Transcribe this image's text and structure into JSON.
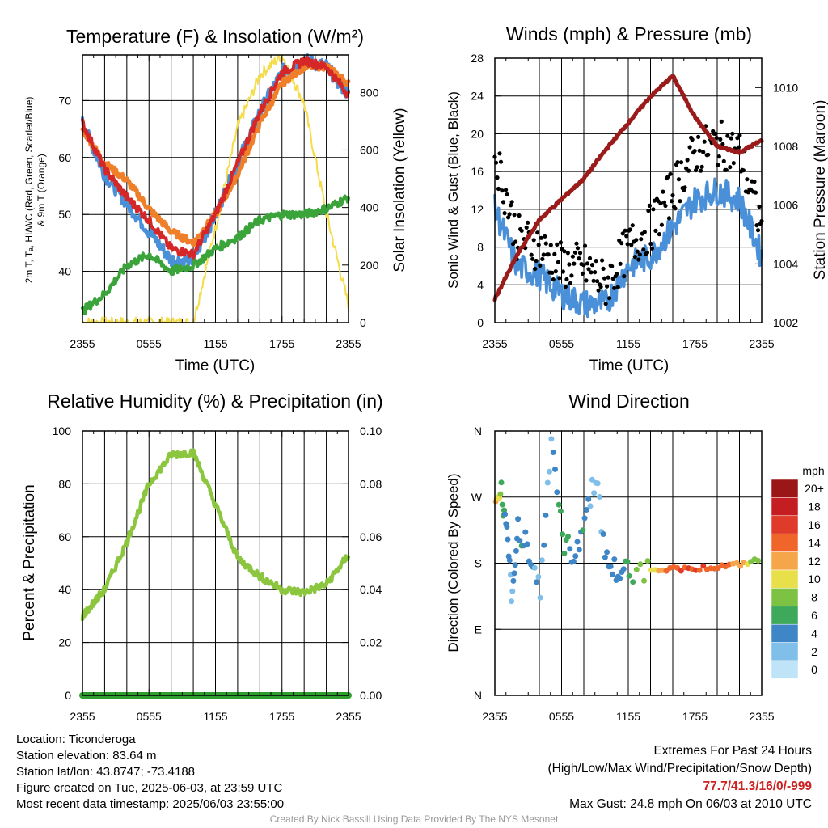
{
  "colors": {
    "temp": "#d62728",
    "dewpoint": "#3aa33a",
    "hiwc": "#4a90d9",
    "temp9m": "#f07f2a",
    "insolation": "#f5dc4a",
    "wind": "#4a90d9",
    "gust": "#000000",
    "pressure": "#9b1b1b",
    "rh": "#8cc63f",
    "precip": "#2e9e2e"
  },
  "panels": {
    "temp": {
      "title": "Temperature (F) & Insolation (W/m²)",
      "ylabel_line1": "2m T, Tₐ, HI/WC (Red, Green, Scarlet/Blue)",
      "ylabel_line2": "& 9m T (Orange)",
      "ylabel_right": "Solar Insolation (Yellow)",
      "xlabel": "Time (UTC)",
      "yticks": [
        "40",
        "50",
        "60",
        "70"
      ],
      "yticks_right": [
        "0",
        "200",
        "400",
        "600",
        "800"
      ]
    },
    "wind": {
      "title": "Winds (mph) & Pressure (mb)",
      "ylabel": "Sonic Wind & Gust (Blue, Black)",
      "ylabel_right": "Station Pressure (Maroon)",
      "xlabel": "Time (UTC)",
      "yticks": [
        "0",
        "4",
        "8",
        "12",
        "16",
        "20",
        "24",
        "28"
      ],
      "yticks_right": [
        "1002",
        "1004",
        "1006",
        "1008",
        "1010"
      ]
    },
    "rh": {
      "title": "Relative Humidity (%) & Precipitation (in)",
      "ylabel": "Percent & Precipitation",
      "yticks": [
        "0",
        "20",
        "40",
        "60",
        "80",
        "100"
      ],
      "yticks_right": [
        "0.00",
        "0.02",
        "0.04",
        "0.06",
        "0.08",
        "0.10"
      ]
    },
    "dir": {
      "title": "Wind Direction",
      "ylabel": "Direction (Colored By Speed)",
      "yticks": [
        "N",
        "E",
        "S",
        "W",
        "N"
      ],
      "colorbar_title": "mph",
      "colorbar_labels": [
        "0",
        "2",
        "4",
        "6",
        "8",
        "10",
        "12",
        "14",
        "16",
        "18",
        "20+"
      ],
      "colorbar_colors": [
        "#bfe3f7",
        "#7fbfea",
        "#3f86c6",
        "#3ea85b",
        "#7dc242",
        "#e8e04a",
        "#f5a64a",
        "#f0662a",
        "#e03a2a",
        "#c41e22",
        "#9b1616"
      ]
    }
  },
  "xticks": [
    "2355",
    "0555",
    "1155",
    "1755",
    "2355"
  ],
  "chart_data": [
    {
      "type": "line",
      "title": "Temperature (F) & Insolation (W/m²)",
      "xlabel": "Time (UTC)",
      "ylabel": "2m T, Tₐ, HI/WC (Red, Green, Scarlet/Blue) & 9m T (Orange)",
      "ylabel_right": "Solar Insolation (Yellow)",
      "x": [
        "2355",
        "0155",
        "0355",
        "0555",
        "0755",
        "0955",
        "1155",
        "1355",
        "1555",
        "1755",
        "1955",
        "2155",
        "2355"
      ],
      "ylim": [
        31,
        78
      ],
      "ylim_right": [
        0,
        930
      ],
      "series": [
        {
          "name": "2m T",
          "color": "#d62728",
          "values": [
            66,
            58,
            53,
            49,
            44,
            43,
            50,
            59,
            68,
            75,
            77,
            76,
            71
          ]
        },
        {
          "name": "9m T",
          "color": "#f07f2a",
          "values": [
            65,
            59,
            56,
            51,
            47,
            45,
            50,
            57,
            66,
            73,
            76,
            76,
            73
          ]
        },
        {
          "name": "Td",
          "color": "#3aa33a",
          "values": [
            33,
            36,
            41,
            43,
            40,
            41,
            44,
            46,
            49,
            50,
            50,
            51,
            53
          ]
        },
        {
          "name": "HI/WC",
          "color": "#4a90d9",
          "values": [
            66,
            57,
            52,
            47,
            42,
            42,
            50,
            59,
            68,
            75,
            77,
            76,
            71
          ]
        },
        {
          "name": "Solar Insolation",
          "axis": "right",
          "color": "#f5dc4a",
          "values": [
            0,
            0,
            0,
            0,
            0,
            0,
            330,
            680,
            860,
            930,
            760,
            380,
            60
          ]
        }
      ]
    },
    {
      "type": "line",
      "title": "Winds (mph) & Pressure (mb)",
      "xlabel": "Time (UTC)",
      "ylabel": "Sonic Wind & Gust (Blue, Black)",
      "ylabel_right": "Station Pressure (Maroon)",
      "x": [
        "2355",
        "0155",
        "0355",
        "0555",
        "0755",
        "0955",
        "1155",
        "1355",
        "1555",
        "1755",
        "1955",
        "2155",
        "2355"
      ],
      "ylim": [
        0,
        28
      ],
      "ylim_right": [
        1002,
        1011
      ],
      "series": [
        {
          "name": "Sonic Wind",
          "color": "#4a90d9",
          "values": [
            12,
            6,
            5,
            3,
            2,
            2,
            6,
            7,
            10,
            13,
            14,
            13,
            7
          ]
        },
        {
          "name": "Gust",
          "type": "scatter",
          "color": "#000000",
          "values": [
            18,
            9,
            8,
            6,
            6,
            4,
            8,
            10,
            14,
            18,
            19,
            18,
            10
          ]
        },
        {
          "name": "Station Pressure",
          "axis": "right",
          "color": "#9b1b1b",
          "values": [
            1002.8,
            1004.3,
            1005.5,
            1006.2,
            1006.9,
            1007.9,
            1008.8,
            1009.7,
            1010.4,
            1009.0,
            1008.0,
            1007.8,
            1008.2
          ]
        }
      ]
    },
    {
      "type": "line",
      "title": "Relative Humidity (%) & Precipitation (in)",
      "ylabel": "Percent & Precipitation",
      "x": [
        "2355",
        "0155",
        "0355",
        "0555",
        "0755",
        "0955",
        "1155",
        "1355",
        "1555",
        "1755",
        "1955",
        "2155",
        "2355"
      ],
      "ylim": [
        0,
        100
      ],
      "ylim_right": [
        0,
        0.1
      ],
      "series": [
        {
          "name": "Relative Humidity",
          "color": "#8cc63f",
          "values": [
            30,
            40,
            58,
            80,
            91,
            92,
            72,
            52,
            45,
            40,
            39,
            42,
            53
          ]
        },
        {
          "name": "Precipitation",
          "axis": "right",
          "color": "#2e9e2e",
          "values": [
            0,
            0,
            0,
            0,
            0,
            0,
            0,
            0,
            0,
            0,
            0,
            0,
            0
          ]
        }
      ]
    },
    {
      "type": "scatter",
      "title": "Wind Direction",
      "ylabel": "Direction (Colored By Speed)",
      "ytick_labels": [
        "N",
        "E",
        "S",
        "W",
        "N"
      ],
      "colorbar_label": "mph",
      "points": [
        {
          "x": "0000",
          "dir": 265,
          "speed": 12
        },
        {
          "x": "0030",
          "dir": 275,
          "speed": 7
        },
        {
          "x": "0100",
          "dir": 215,
          "speed": 4
        },
        {
          "x": "0130",
          "dir": 125,
          "speed": 2
        },
        {
          "x": "0200",
          "dir": 230,
          "speed": 5
        },
        {
          "x": "0300",
          "dir": 200,
          "speed": 4
        },
        {
          "x": "0400",
          "dir": 140,
          "speed": 3
        },
        {
          "x": "0500",
          "dir": 355,
          "speed": 2
        },
        {
          "x": "0600",
          "dir": 210,
          "speed": 7
        },
        {
          "x": "0700",
          "dir": 190,
          "speed": 3
        },
        {
          "x": "0800",
          "dir": 240,
          "speed": 5
        },
        {
          "x": "0900",
          "dir": 300,
          "speed": 1
        },
        {
          "x": "1000",
          "dir": 180,
          "speed": 4
        },
        {
          "x": "1100",
          "dir": 165,
          "speed": 4
        },
        {
          "x": "1200",
          "dir": 170,
          "speed": 6
        },
        {
          "x": "1400",
          "dir": 172,
          "speed": 10
        },
        {
          "x": "1600",
          "dir": 172,
          "speed": 14
        },
        {
          "x": "1800",
          "dir": 173,
          "speed": 16
        },
        {
          "x": "2000",
          "dir": 175,
          "speed": 14
        },
        {
          "x": "2200",
          "dir": 178,
          "speed": 12
        },
        {
          "x": "2355",
          "dir": 185,
          "speed": 7
        }
      ]
    }
  ],
  "info": {
    "location": "Location: Ticonderoga",
    "elevation": "Station elevation: 83.64 m",
    "latlon": "Station lat/lon: 43.8747; -73.4188",
    "created": "Figure created on Tue, 2025-06-03, at 23:59 UTC",
    "recent": "Most recent data timestamp: 2025/06/03 23:55:00"
  },
  "extremes": {
    "title": "Extremes For Past 24 Hours",
    "subtitle": "(High/Low/Max Wind/Precipitation/Snow Depth)",
    "values": "77.7/41.3/16/0/-999",
    "gust": "Max Gust: 24.8 mph On 06/03 at 2010 UTC"
  },
  "credit": "Created By Nick Bassill Using Data Provided By The NYS Mesonet"
}
